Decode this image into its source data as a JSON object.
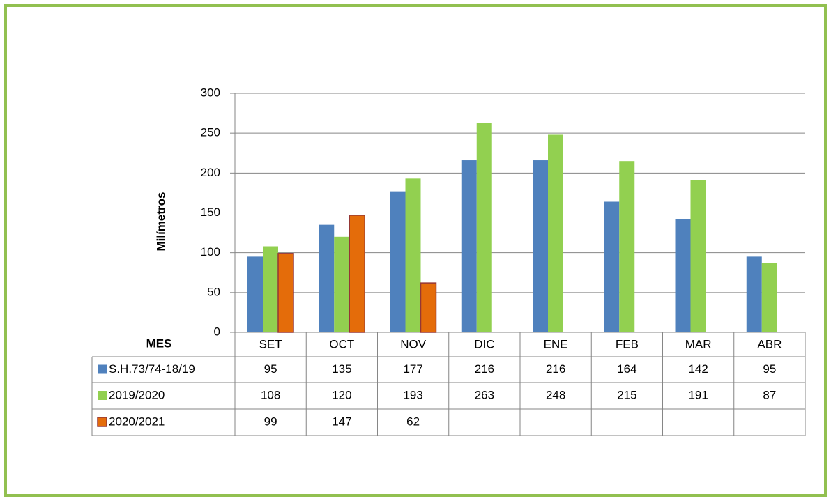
{
  "chart_data": {
    "type": "bar",
    "y_label": "Milímetros",
    "table_header": "MES",
    "categories": [
      "SET",
      "OCT",
      "NOV",
      "DIC",
      "ENE",
      "FEB",
      "MAR",
      "ABR"
    ],
    "series": [
      {
        "name": "S.H.73/74-18/19",
        "color": "#4f81bd",
        "values": [
          95,
          135,
          177,
          216,
          216,
          164,
          142,
          95
        ]
      },
      {
        "name": "2019/2020",
        "color": "#92d050",
        "values": [
          108,
          120,
          193,
          263,
          248,
          215,
          191,
          87
        ]
      },
      {
        "name": "2020/2021",
        "color": "#e46c0a",
        "values": [
          99,
          147,
          62,
          null,
          null,
          null,
          null,
          null
        ]
      }
    ],
    "ylim": [
      0,
      300
    ],
    "yticks": [
      0,
      50,
      100,
      150,
      200,
      250,
      300
    ],
    "grid": true
  }
}
